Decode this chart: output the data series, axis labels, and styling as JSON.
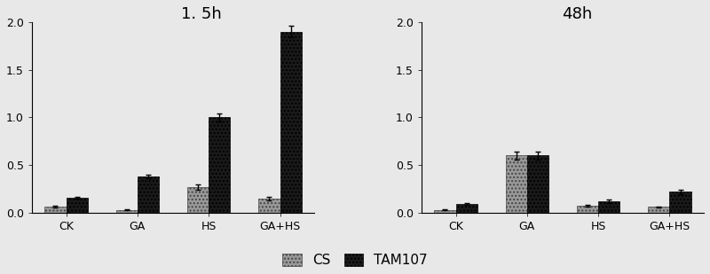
{
  "panel1": {
    "title": "1. 5h",
    "categories": [
      "CK",
      "GA",
      "HS",
      "GA+HS"
    ],
    "cs_values": [
      0.06,
      0.03,
      0.27,
      0.15
    ],
    "tam_values": [
      0.16,
      0.38,
      1.0,
      1.9
    ],
    "cs_errors": [
      0.01,
      0.005,
      0.03,
      0.02
    ],
    "tam_errors": [
      0.01,
      0.02,
      0.04,
      0.06
    ],
    "ylim": [
      0,
      2.0
    ],
    "yticks": [
      0,
      0.5,
      1,
      1.5,
      2
    ]
  },
  "panel2": {
    "title": "48h",
    "categories": [
      "CK",
      "GA",
      "HS",
      "GA+HS"
    ],
    "cs_values": [
      0.03,
      0.6,
      0.07,
      0.06
    ],
    "tam_values": [
      0.09,
      0.6,
      0.12,
      0.22
    ],
    "cs_errors": [
      0.005,
      0.04,
      0.01,
      0.005
    ],
    "tam_errors": [
      0.01,
      0.04,
      0.02,
      0.025
    ],
    "ylim": [
      0,
      2.0
    ],
    "yticks": [
      0,
      0.5,
      1,
      1.5,
      2
    ]
  },
  "cs_color": "#999999",
  "tam_color": "#1a1a1a",
  "bar_width": 0.3,
  "background_color": "#e8e8e8",
  "plot_bg_color": "#e8e8e8",
  "fontsize_title": 13,
  "fontsize_tick": 9,
  "fontsize_legend": 11
}
